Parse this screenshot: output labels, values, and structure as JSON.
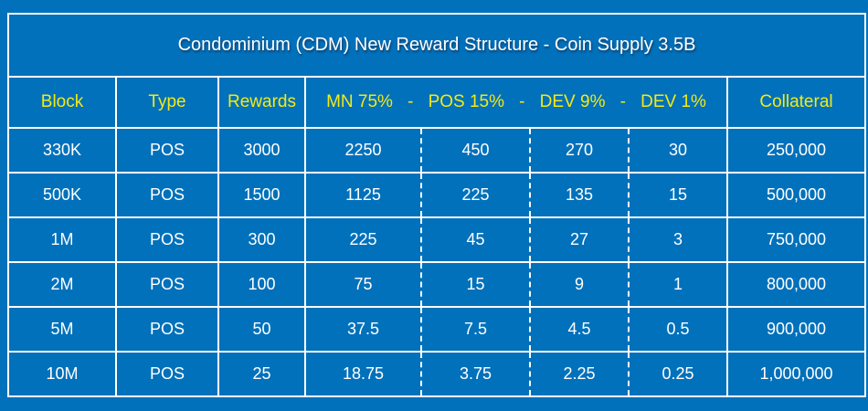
{
  "title": "Condominium (CDM) New Reward Structure - Coin Supply 3.5B",
  "headers": {
    "block": "Block",
    "type": "Type",
    "rewards": "Rewards",
    "mn": "MN 75%",
    "pos": "POS 15%",
    "dev9": "DEV 9%",
    "dev1": "DEV 1%",
    "separator": "-",
    "collateral": "Collateral"
  },
  "rows": [
    [
      "330K",
      "POS",
      "3000",
      "2250",
      "450",
      "270",
      "30",
      "250,000"
    ],
    [
      "500K",
      "POS",
      "1500",
      "1125",
      "225",
      "135",
      "15",
      "500,000"
    ],
    [
      "1M",
      "POS",
      "300",
      "225",
      "45",
      "27",
      "3",
      "750,000"
    ],
    [
      "2M",
      "POS",
      "100",
      "75",
      "15",
      "9",
      "1",
      "800,000"
    ],
    [
      "5M",
      "POS",
      "50",
      "37.5",
      "7.5",
      "4.5",
      "0.5",
      "900,000"
    ],
    [
      "10M",
      "POS",
      "25",
      "18.75",
      "3.75",
      "2.25",
      "0.25",
      "1,000,000"
    ]
  ],
  "colors": {
    "background": "#0271bb",
    "header_text": "#f3ea14",
    "text": "#ffffff"
  }
}
